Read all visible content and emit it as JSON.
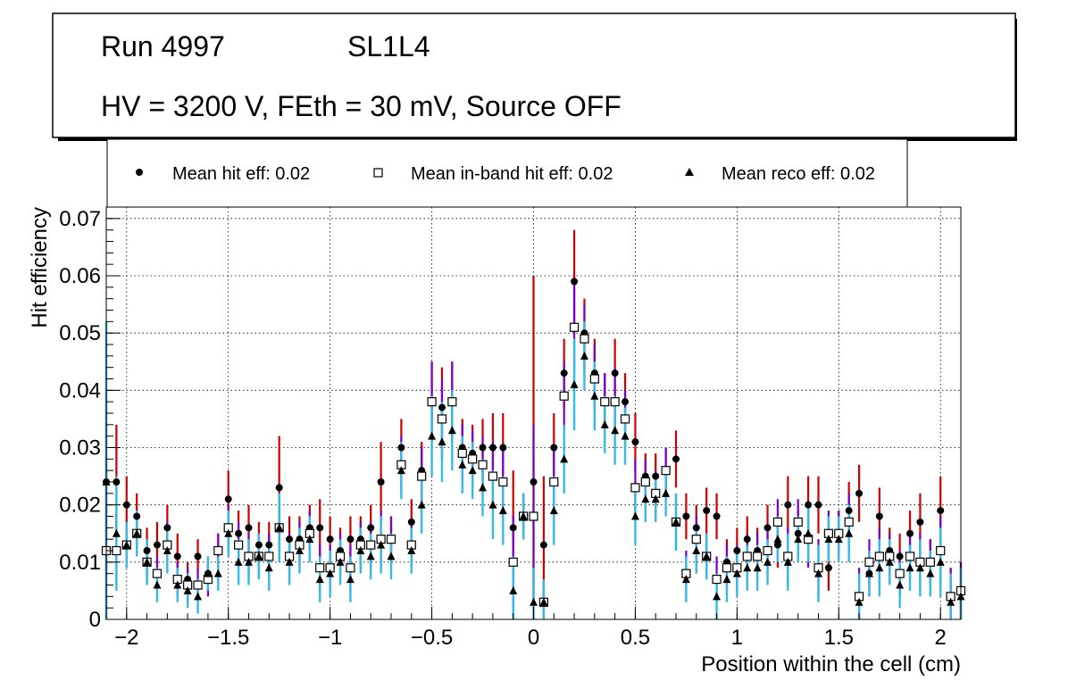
{
  "header": {
    "run_label": "Run 4997",
    "layer_label": "SL1L4",
    "conditions": "HV = 3200 V, FEth = 30 mV, Source OFF"
  },
  "legend": {
    "hit": "Mean hit  eff: 0.02",
    "inband": "Mean in-band hit eff: 0.02",
    "reco": "Mean reco eff: 0.02"
  },
  "colors": {
    "hit_error": "#cc0000",
    "inband_error": "#7a00cc",
    "reco_error": "#33bbe6",
    "marker": "#000000"
  },
  "chart_data": {
    "type": "scatter",
    "xlabel": "Position within the cell (cm)",
    "ylabel": "Hit efficiency",
    "xlim": [
      -2.1,
      2.1
    ],
    "ylim": [
      0,
      0.072
    ],
    "grid": true,
    "x_ticks": [
      -2,
      -1.5,
      -1,
      -0.5,
      0,
      0.5,
      1,
      1.5,
      2
    ],
    "x_tick_labels": [
      "−2",
      "−1.5",
      "−1",
      "−0.5",
      "0",
      "0.5",
      "1",
      "1.5",
      "2"
    ],
    "y_ticks": [
      0,
      0.01,
      0.02,
      0.03,
      0.04,
      0.05,
      0.06,
      0.07
    ],
    "y_tick_labels": [
      "0",
      "0.01",
      "0.02",
      "0.03",
      "0.04",
      "0.05",
      "0.06",
      "0.07"
    ],
    "x": [
      -2.1,
      -2.05,
      -2,
      -1.95,
      -1.9,
      -1.85,
      -1.8,
      -1.75,
      -1.7,
      -1.65,
      -1.6,
      -1.55,
      -1.5,
      -1.45,
      -1.4,
      -1.35,
      -1.3,
      -1.25,
      -1.2,
      -1.15,
      -1.1,
      -1.05,
      -1,
      -0.95,
      -0.9,
      -0.85,
      -0.8,
      -0.75,
      -0.7,
      -0.65,
      -0.6,
      -0.55,
      -0.5,
      -0.45,
      -0.4,
      -0.35,
      -0.3,
      -0.25,
      -0.2,
      -0.15,
      -0.1,
      -0.05,
      0,
      0.05,
      0.1,
      0.15,
      0.2,
      0.25,
      0.3,
      0.35,
      0.4,
      0.45,
      0.5,
      0.55,
      0.6,
      0.65,
      0.7,
      0.75,
      0.8,
      0.85,
      0.9,
      0.95,
      1,
      1.05,
      1.1,
      1.15,
      1.2,
      1.25,
      1.3,
      1.35,
      1.4,
      1.45,
      1.5,
      1.55,
      1.6,
      1.65,
      1.7,
      1.75,
      1.8,
      1.85,
      1.9,
      1.95,
      2,
      2.05,
      2.1
    ],
    "series": [
      {
        "name": "Mean hit  eff: 0.02",
        "marker": "circle",
        "values": [
          0.024,
          0.024,
          0.02,
          0.018,
          0.012,
          0.013,
          0.016,
          0.011,
          0.007,
          0.011,
          0.008,
          0.012,
          0.021,
          0.015,
          0.016,
          0.013,
          0.013,
          0.023,
          0.014,
          0.014,
          0.016,
          0.016,
          0.014,
          0.012,
          0.014,
          0.014,
          0.016,
          0.024,
          0.014,
          0.03,
          0.017,
          0.026,
          0.038,
          0.037,
          0.038,
          0.03,
          0.029,
          0.03,
          0.03,
          0.03,
          0.016,
          0.018,
          0.024,
          0.013,
          0.03,
          0.043,
          0.059,
          0.05,
          0.043,
          0.038,
          0.043,
          0.038,
          0.031,
          0.025,
          0.025,
          0.026,
          0.028,
          0.018,
          0.016,
          0.019,
          0.018,
          0.01,
          0.012,
          0.014,
          0.012,
          0.016,
          0.013,
          0.02,
          0.015,
          0.02,
          0.02,
          0.009,
          0.015,
          0.019,
          0.022,
          0.008,
          0.018,
          0.012,
          0.011,
          0.015,
          0.017,
          0.01,
          0.019,
          0.004,
          0.005
        ],
        "errors": [
          0.016,
          0.01,
          0.005,
          0.004,
          0.004,
          0.004,
          0.004,
          0.004,
          0.003,
          0.003,
          0.003,
          0.003,
          0.005,
          0.004,
          0.004,
          0.004,
          0.004,
          0.009,
          0.004,
          0.004,
          0.004,
          0.005,
          0.004,
          0.004,
          0.004,
          0.004,
          0.004,
          0.007,
          0.004,
          0.005,
          0.004,
          0.005,
          0.007,
          0.007,
          0.007,
          0.005,
          0.005,
          0.005,
          0.006,
          0.006,
          0.01,
          0.004,
          0.036,
          0.012,
          0.006,
          0.006,
          0.009,
          0.006,
          0.006,
          0.005,
          0.006,
          0.005,
          0.005,
          0.004,
          0.004,
          0.004,
          0.005,
          0.004,
          0.004,
          0.004,
          0.004,
          0.004,
          0.004,
          0.004,
          0.004,
          0.004,
          0.004,
          0.005,
          0.004,
          0.005,
          0.005,
          0.004,
          0.004,
          0.005,
          0.005,
          0.004,
          0.005,
          0.004,
          0.004,
          0.004,
          0.005,
          0.004,
          0.006,
          0.005,
          0.005
        ]
      },
      {
        "name": "Mean in-band hit eff: 0.02",
        "marker": "open-square",
        "values": [
          0.012,
          0.012,
          0.013,
          0.015,
          0.01,
          0.008,
          0.013,
          0.007,
          0.006,
          0.006,
          0.007,
          0.012,
          0.016,
          0.013,
          0.011,
          0.011,
          0.011,
          0.016,
          0.011,
          0.013,
          0.015,
          0.009,
          0.009,
          0.011,
          0.009,
          0.013,
          0.013,
          0.014,
          0.014,
          0.027,
          0.013,
          0.025,
          0.038,
          0.035,
          0.038,
          0.029,
          0.028,
          0.027,
          0.025,
          0.024,
          0.01,
          0.018,
          0.018,
          0.003,
          0.024,
          0.039,
          0.051,
          0.049,
          0.042,
          0.038,
          0.038,
          0.035,
          0.023,
          0.024,
          0.022,
          0.026,
          0.017,
          0.008,
          0.014,
          0.011,
          0.007,
          0.009,
          0.009,
          0.011,
          0.011,
          0.012,
          0.017,
          0.011,
          0.017,
          0.014,
          0.009,
          0.015,
          0.015,
          0.017,
          0.004,
          0.01,
          0.011,
          0.011,
          0.008,
          0.011,
          0.01,
          0.01,
          0.012,
          0.004,
          0.005
        ],
        "errors": [
          0.016,
          0.006,
          0.004,
          0.004,
          0.004,
          0.003,
          0.004,
          0.003,
          0.003,
          0.003,
          0.003,
          0.003,
          0.004,
          0.004,
          0.004,
          0.004,
          0.004,
          0.006,
          0.004,
          0.004,
          0.004,
          0.004,
          0.004,
          0.004,
          0.004,
          0.004,
          0.004,
          0.005,
          0.004,
          0.005,
          0.004,
          0.005,
          0.007,
          0.007,
          0.007,
          0.005,
          0.005,
          0.005,
          0.006,
          0.006,
          0.008,
          0.004,
          0.016,
          0.004,
          0.006,
          0.006,
          0.008,
          0.006,
          0.006,
          0.005,
          0.006,
          0.005,
          0.005,
          0.004,
          0.004,
          0.004,
          0.005,
          0.004,
          0.004,
          0.004,
          0.004,
          0.004,
          0.004,
          0.004,
          0.004,
          0.004,
          0.004,
          0.005,
          0.004,
          0.005,
          0.005,
          0.004,
          0.004,
          0.005,
          0.005,
          0.004,
          0.005,
          0.004,
          0.004,
          0.004,
          0.005,
          0.004,
          0.006,
          0.005,
          0.005
        ]
      },
      {
        "name": "Mean reco eff: 0.02",
        "marker": "triangle",
        "values": [
          0.024,
          0.015,
          0.013,
          0.015,
          0.01,
          0.006,
          0.012,
          0.006,
          0.005,
          0.004,
          0.008,
          0.008,
          0.015,
          0.01,
          0.01,
          0.011,
          0.009,
          0.016,
          0.01,
          0.012,
          0.014,
          0.007,
          0.008,
          0.01,
          0.007,
          0.012,
          0.011,
          0.013,
          0.011,
          0.026,
          0.012,
          0.02,
          0.032,
          0.031,
          0.033,
          0.027,
          0.026,
          0.023,
          0.02,
          0.019,
          0.005,
          0.018,
          0.003,
          0.003,
          0.019,
          0.028,
          0.041,
          0.046,
          0.039,
          0.034,
          0.033,
          0.032,
          0.018,
          0.021,
          0.021,
          0.022,
          0.017,
          0.007,
          0.012,
          0.011,
          0.004,
          0.007,
          0.008,
          0.009,
          0.009,
          0.01,
          0.014,
          0.01,
          0.014,
          0.015,
          0.008,
          0.014,
          0.014,
          0.015,
          0.003,
          0.008,
          0.009,
          0.01,
          0.006,
          0.009,
          0.009,
          0.008,
          0.01,
          0.003,
          0.004
        ],
        "errors": [
          0.028,
          0.01,
          0.004,
          0.004,
          0.004,
          0.003,
          0.004,
          0.003,
          0.003,
          0.003,
          0.003,
          0.003,
          0.004,
          0.004,
          0.004,
          0.004,
          0.004,
          0.006,
          0.004,
          0.004,
          0.004,
          0.004,
          0.004,
          0.004,
          0.004,
          0.004,
          0.004,
          0.005,
          0.004,
          0.005,
          0.004,
          0.005,
          0.007,
          0.007,
          0.007,
          0.005,
          0.005,
          0.005,
          0.006,
          0.006,
          0.006,
          0.004,
          0.006,
          0.004,
          0.006,
          0.006,
          0.008,
          0.006,
          0.006,
          0.005,
          0.006,
          0.005,
          0.005,
          0.004,
          0.004,
          0.004,
          0.005,
          0.004,
          0.004,
          0.004,
          0.004,
          0.004,
          0.004,
          0.004,
          0.004,
          0.004,
          0.004,
          0.005,
          0.004,
          0.005,
          0.005,
          0.004,
          0.004,
          0.005,
          0.005,
          0.004,
          0.005,
          0.004,
          0.004,
          0.004,
          0.005,
          0.004,
          0.006,
          0.005,
          0.005
        ]
      }
    ]
  }
}
